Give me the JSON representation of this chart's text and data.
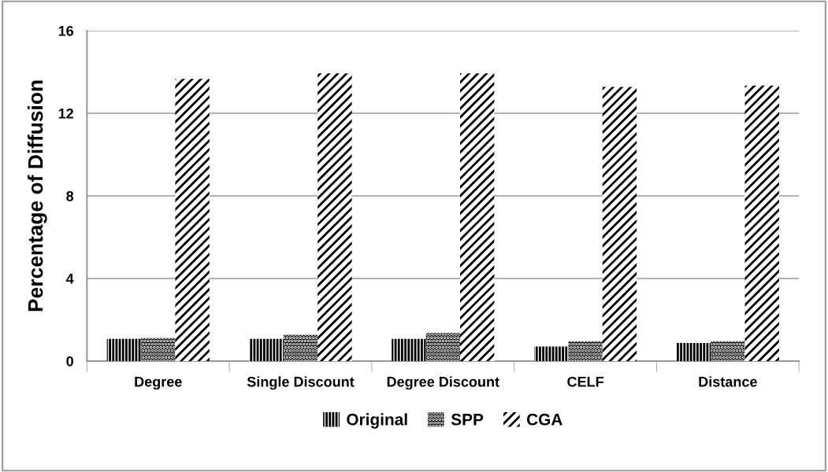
{
  "chart_data": {
    "type": "bar",
    "ylabel": "Percentage of Diffusion",
    "categories": [
      "Degree",
      "Single Discount",
      "Degree Discount",
      "CELF",
      "Distance"
    ],
    "series": [
      {
        "name": "Original",
        "color": "#000000",
        "values": [
          1.08,
          1.08,
          1.08,
          0.7,
          0.88
        ]
      },
      {
        "name": "SPP",
        "color": "#000000",
        "values": [
          1.12,
          1.28,
          1.36,
          0.96,
          0.96
        ]
      },
      {
        "name": "CGA",
        "color": "#000000",
        "values": [
          13.67,
          13.93,
          13.93,
          13.28,
          13.34
        ]
      }
    ],
    "ylim": [
      0,
      16
    ],
    "yticks": [
      0,
      4,
      8,
      12,
      16
    ],
    "grid": "y",
    "legend": "bottom"
  }
}
